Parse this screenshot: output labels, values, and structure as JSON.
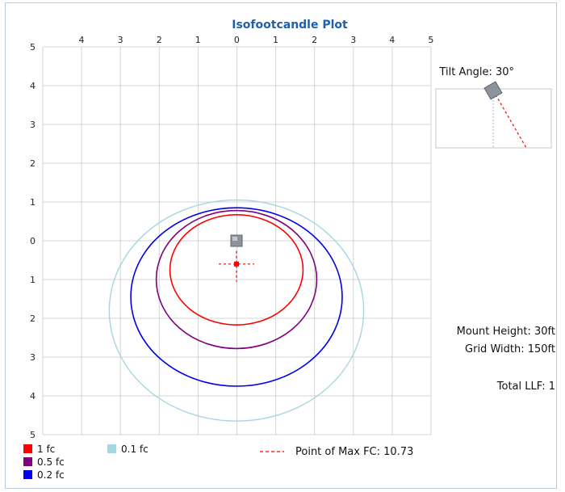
{
  "chart_data": {
    "type": "isoline",
    "title": "Isofootcandle Plot",
    "x_ticks": [
      "4",
      "3",
      "2",
      "1",
      "0",
      "1",
      "2",
      "3",
      "4",
      "5"
    ],
    "y_ticks": [
      "5",
      "4",
      "3",
      "2",
      "1",
      "0",
      "1",
      "2",
      "3",
      "4",
      "5"
    ],
    "grid": true,
    "fixture_position": {
      "x": 0,
      "y": 0
    },
    "max_point": {
      "x": 0,
      "y": 0.6
    },
    "contours": [
      {
        "name": "0.1 fc",
        "color": "#a6d6e2",
        "center": [
          0,
          1.8
        ],
        "rx": 3.25,
        "ry": 2.85
      },
      {
        "name": "0.2 fc",
        "color": "#0000ee",
        "center": [
          0,
          1.45
        ],
        "rx": 2.7,
        "ry": 2.3
      },
      {
        "name": "0.5 fc",
        "color": "#800080",
        "center": [
          0,
          1.0
        ],
        "rx": 2.05,
        "ry": 1.78
      },
      {
        "name": "1 fc",
        "color": "#ff0000",
        "center": [
          0,
          0.75
        ],
        "rx": 1.7,
        "ry": 1.42
      }
    ]
  },
  "tilt": {
    "label": "Tilt Angle: 30°",
    "angle_deg": 30
  },
  "info": {
    "mount_height": "Mount Height: 30ft",
    "grid_width": "Grid Width: 150ft",
    "total_llf": "Total LLF: 1"
  },
  "legend": [
    {
      "label": "1 fc",
      "color": "#ff0000"
    },
    {
      "label": "0.5 fc",
      "color": "#800080"
    },
    {
      "label": "0.2 fc",
      "color": "#0000ee"
    },
    {
      "label": "0.1 fc",
      "color": "#a6d6e2"
    }
  ],
  "max_fc_label": "Point of Max FC: 10.73"
}
